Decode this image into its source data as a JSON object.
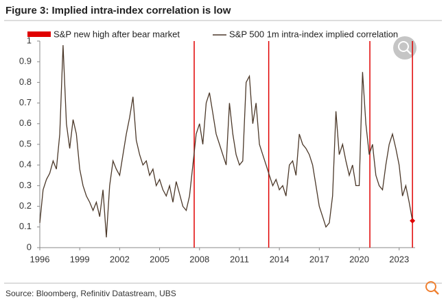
{
  "chart_data": {
    "type": "line",
    "title": "Figure 3: Implied intra-index correlation is low",
    "source": "Source: Bloomberg, Refinitiv Datastream, UBS",
    "x": [
      1996,
      1996.25,
      1996.5,
      1996.75,
      1997,
      1997.25,
      1997.5,
      1997.75,
      1998,
      1998.25,
      1998.5,
      1998.75,
      1999,
      1999.25,
      1999.5,
      1999.75,
      2000,
      2000.25,
      2000.5,
      2000.75,
      2001,
      2001.25,
      2001.5,
      2001.75,
      2002,
      2002.25,
      2002.5,
      2002.75,
      2003,
      2003.25,
      2003.5,
      2003.75,
      2004,
      2004.25,
      2004.5,
      2004.75,
      2005,
      2005.25,
      2005.5,
      2005.75,
      2006,
      2006.25,
      2006.5,
      2006.75,
      2007,
      2007.25,
      2007.5,
      2007.75,
      2008,
      2008.25,
      2008.5,
      2008.75,
      2009,
      2009.25,
      2009.5,
      2009.75,
      2010,
      2010.25,
      2010.5,
      2010.75,
      2011,
      2011.25,
      2011.5,
      2011.75,
      2012,
      2012.25,
      2012.5,
      2012.75,
      2013,
      2013.25,
      2013.5,
      2013.75,
      2014,
      2014.25,
      2014.5,
      2014.75,
      2015,
      2015.25,
      2015.5,
      2015.75,
      2016,
      2016.25,
      2016.5,
      2016.75,
      2017,
      2017.25,
      2017.5,
      2017.75,
      2018,
      2018.25,
      2018.5,
      2018.75,
      2019,
      2019.25,
      2019.5,
      2019.75,
      2020,
      2020.25,
      2020.5,
      2020.75,
      2021,
      2021.25,
      2021.5,
      2021.75,
      2022,
      2022.25,
      2022.5,
      2022.75,
      2023,
      2023.25,
      2023.5,
      2023.75,
      2024
    ],
    "series": [
      {
        "name": "S&P 500 1m intra-index implied correlation",
        "color": "#4a3728",
        "values": [
          0.12,
          0.28,
          0.33,
          0.36,
          0.42,
          0.38,
          0.55,
          0.98,
          0.6,
          0.48,
          0.62,
          0.55,
          0.38,
          0.3,
          0.25,
          0.22,
          0.18,
          0.22,
          0.15,
          0.28,
          0.05,
          0.3,
          0.42,
          0.38,
          0.35,
          0.45,
          0.55,
          0.63,
          0.73,
          0.52,
          0.45,
          0.4,
          0.42,
          0.35,
          0.38,
          0.3,
          0.33,
          0.28,
          0.25,
          0.3,
          0.22,
          0.32,
          0.26,
          0.2,
          0.18,
          0.25,
          0.4,
          0.55,
          0.6,
          0.5,
          0.7,
          0.75,
          0.65,
          0.55,
          0.5,
          0.45,
          0.4,
          0.7,
          0.55,
          0.45,
          0.4,
          0.42,
          0.8,
          0.83,
          0.6,
          0.7,
          0.5,
          0.45,
          0.4,
          0.35,
          0.3,
          0.33,
          0.28,
          0.3,
          0.25,
          0.4,
          0.42,
          0.35,
          0.55,
          0.5,
          0.48,
          0.45,
          0.4,
          0.3,
          0.2,
          0.15,
          0.1,
          0.12,
          0.25,
          0.66,
          0.45,
          0.5,
          0.42,
          0.35,
          0.4,
          0.3,
          0.3,
          0.85,
          0.6,
          0.45,
          0.5,
          0.35,
          0.3,
          0.28,
          0.4,
          0.5,
          0.55,
          0.48,
          0.4,
          0.25,
          0.3,
          0.22,
          0.13
        ]
      }
    ],
    "events": {
      "name": "S&P new high after bear market",
      "color": "#e00000",
      "x": [
        2007.6,
        2013.2,
        2020.8,
        2024.0
      ]
    },
    "xlim": [
      1996,
      2024.2
    ],
    "xticks": [
      1996,
      1999,
      2002,
      2005,
      2008,
      2011,
      2014,
      2017,
      2020,
      2023
    ],
    "ylim": [
      0,
      1
    ],
    "yticks": [
      0,
      0.1,
      0.2,
      0.3,
      0.4,
      0.5,
      0.6,
      0.7,
      0.8,
      0.9,
      1
    ]
  }
}
